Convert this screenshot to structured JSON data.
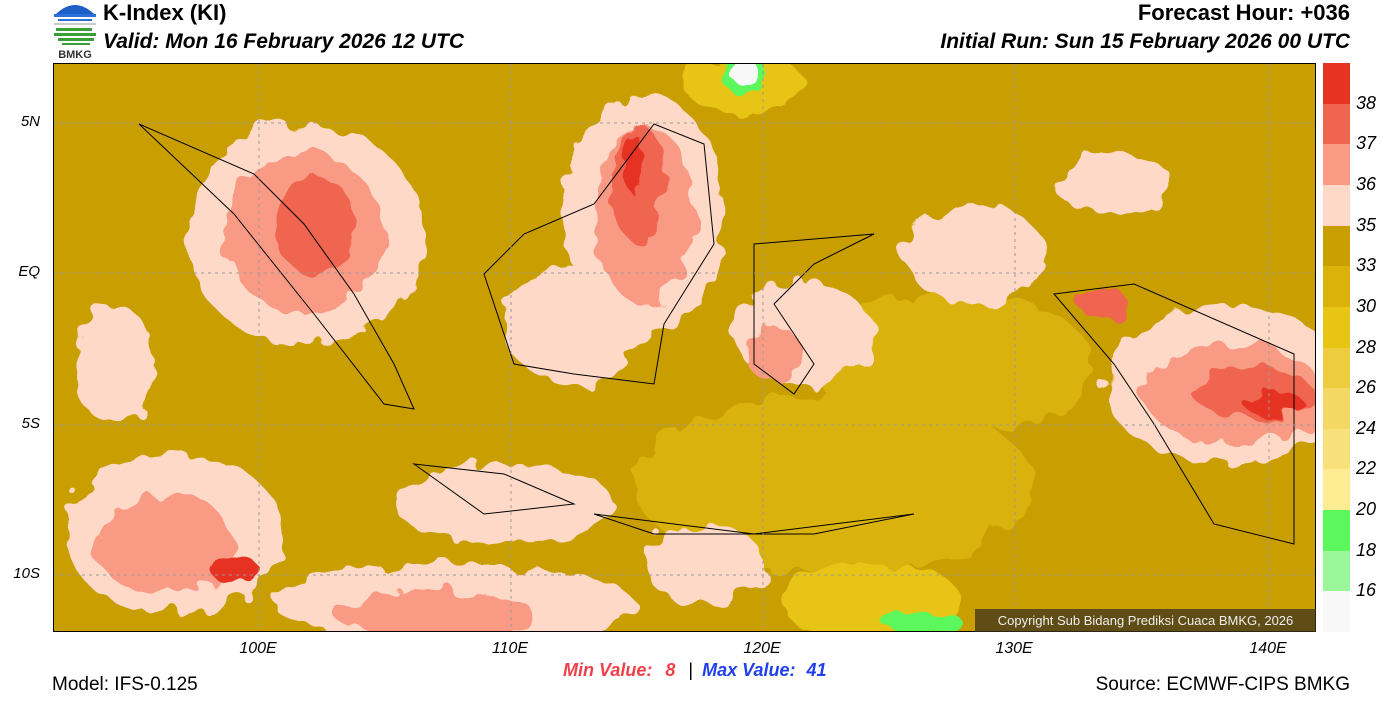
{
  "header": {
    "title": "K-Index (KI)",
    "valid": "Valid: Mon 16 February 2026 12 UTC",
    "forecast_hour": "Forecast Hour: +036",
    "initial_run": "Initial Run: Sun 15 February 2026 00 UTC",
    "logo_text": "BMKG"
  },
  "map": {
    "lat_labels": [
      "5N",
      "EQ",
      "5S",
      "10S"
    ],
    "lon_labels": [
      "100E",
      "110E",
      "120E",
      "130E",
      "140E"
    ],
    "copyright": "Copyright Sub Bidang Prediksi Cuaca BMKG, 2026"
  },
  "colorbar": {
    "labels": [
      "38",
      "37",
      "36",
      "35",
      "33",
      "30",
      "28",
      "26",
      "24",
      "22",
      "20",
      "18",
      "16"
    ],
    "colors": [
      "#e63322",
      "#ef6550",
      "#f99a85",
      "#fed9c8",
      "#c99e00",
      "#dab20a",
      "#e8c414",
      "#edcd3d",
      "#f3d863",
      "#f8e17c",
      "#fdec92",
      "#5cf75c",
      "#9af79a",
      "#f8f8f8"
    ]
  },
  "footer": {
    "model": "Model: IFS-0.125",
    "min_label": "Min Value:",
    "min_value": "8",
    "separator": "|",
    "max_label": "Max Value:",
    "max_value": "41",
    "source": "Source: ECMWF-CIPS BMKG"
  }
}
